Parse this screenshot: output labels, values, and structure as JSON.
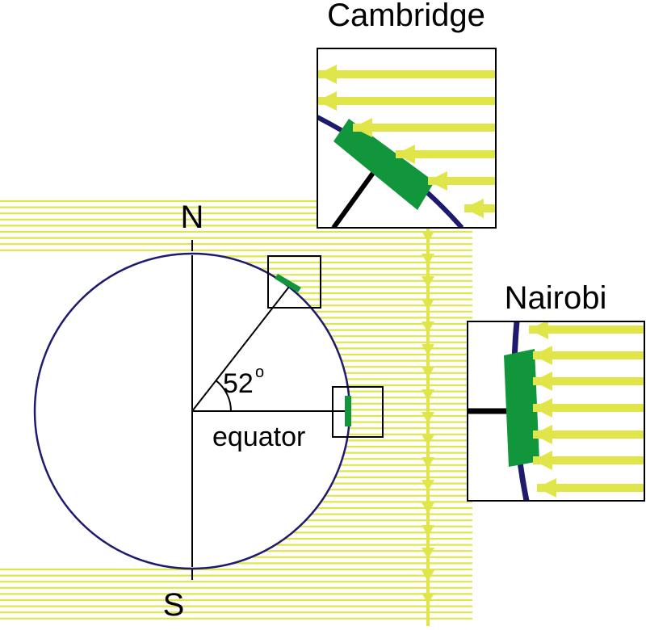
{
  "labels": {
    "north": "N",
    "south": "S",
    "equator": "equator",
    "angle": "52",
    "angle_unit": "o",
    "cambridge": "Cambridge",
    "nairobi": "Nairobi"
  },
  "colors": {
    "sunlight": "#e0e64a",
    "earth_outline": "#1e1a6e",
    "surface_patch": "#12963c",
    "axis": "#000000",
    "background": "#ffffff"
  },
  "icons": {
    "ray_head": "arrowhead-left",
    "down_arrow_head": "arrowhead-down"
  }
}
